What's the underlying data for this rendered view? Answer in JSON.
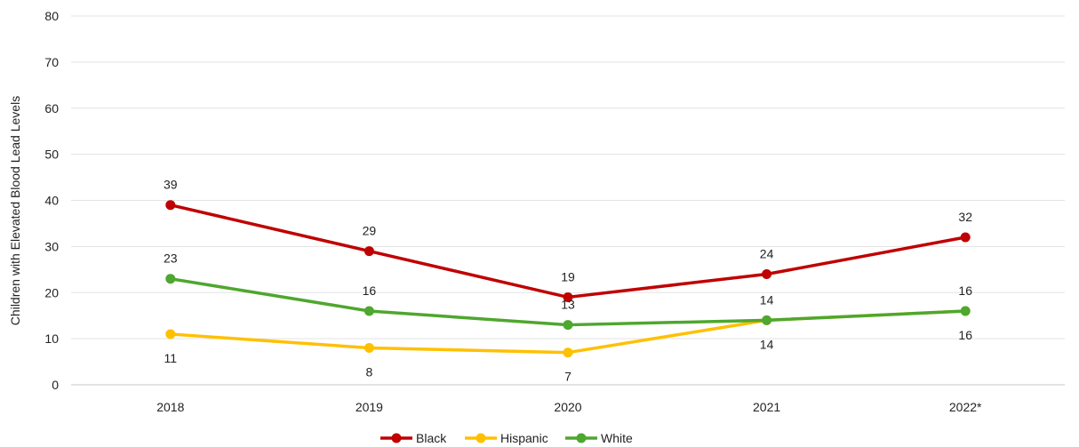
{
  "chart_data": {
    "type": "line",
    "title": "",
    "xlabel": "",
    "ylabel": "Children with Elevated Blood Lead Levels",
    "categories": [
      "2018",
      "2019",
      "2020",
      "2021",
      "2022*"
    ],
    "ylim": [
      0,
      80
    ],
    "yticks": [
      "0",
      "10",
      "20",
      "30",
      "40",
      "50",
      "60",
      "70",
      "80"
    ],
    "grid": true,
    "legend_position": "bottom",
    "series": [
      {
        "name": "Black",
        "color": "#c00000",
        "values": [
          39,
          29,
          19,
          24,
          32
        ],
        "label_pos": [
          "above",
          "above",
          "above",
          "above",
          "above"
        ]
      },
      {
        "name": "Hispanic",
        "color": "#ffc000",
        "values": [
          11,
          8,
          7,
          14,
          16
        ],
        "label_pos": [
          "below",
          "below",
          "below",
          "below",
          "below"
        ]
      },
      {
        "name": "White",
        "color": "#4ea72e",
        "values": [
          23,
          16,
          13,
          14,
          16
        ],
        "label_pos": [
          "above",
          "above",
          "above",
          "above",
          "above"
        ]
      }
    ]
  }
}
